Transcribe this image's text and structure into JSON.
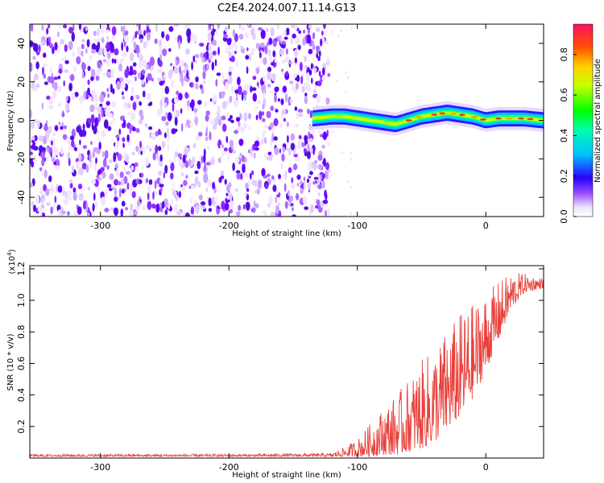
{
  "title": "C2E4.2024.007.11.14.G13",
  "colors": {
    "snr_line": "#e8403a",
    "spectrogram_noise": "#7f00ff",
    "axis": "#000000"
  },
  "chart_data": [
    {
      "type": "heatmap",
      "name": "spectrogram",
      "xlabel": "Height of straight line (km)",
      "ylabel": "Frequency (Hz)",
      "xlim": [
        -355,
        45
      ],
      "ylim": [
        -50,
        50
      ],
      "x_ticks": [
        -300,
        -200,
        -100,
        0
      ],
      "x_tick_labels": [
        "-300",
        "-200",
        "-100",
        "0"
      ],
      "y_ticks": [
        -40,
        -20,
        0,
        20,
        40
      ],
      "y_tick_labels": [
        "-40",
        "-20",
        "0",
        "20",
        "40"
      ],
      "noise_region_end_km": -122,
      "signal_ridge": {
        "x": [
          -135,
          -120,
          -110,
          -100,
          -90,
          -80,
          -70,
          -60,
          -50,
          -40,
          -30,
          -20,
          -10,
          0,
          10,
          20,
          30,
          45
        ],
        "freq": [
          1,
          2,
          2,
          1,
          0,
          -1,
          -2,
          0,
          2,
          3,
          4,
          3,
          2,
          0,
          1,
          1,
          1,
          0
        ]
      },
      "colorbar": {
        "label": "Normalized spectral amplitude",
        "range": [
          0.0,
          0.95
        ],
        "ticks": [
          0.0,
          0.2,
          0.4,
          0.6,
          0.8
        ],
        "tick_labels": [
          "0.0",
          "0.2",
          "0.4",
          "0.6",
          "0.8"
        ]
      }
    },
    {
      "type": "line",
      "name": "snr",
      "xlabel": "Height of straight line (km)",
      "ylabel": "SNR (10 * v/v)",
      "y_multiplier": "(x10",
      "y_multiplier_exp": "4",
      "xlim": [
        -355,
        45
      ],
      "ylim": [
        0,
        1.22
      ],
      "x_ticks": [
        -300,
        -200,
        -100,
        0
      ],
      "x_tick_labels": [
        "-300",
        "-200",
        "-100",
        "0"
      ],
      "y_ticks": [
        0.2,
        0.4,
        0.6,
        0.8,
        1.0,
        1.2
      ],
      "y_tick_labels": [
        "0.2",
        "0.4",
        "0.6",
        "0.8",
        "1.0",
        "1.2"
      ],
      "envelope": {
        "x": [
          -355,
          -300,
          -200,
          -120,
          -110,
          -100,
          -90,
          -80,
          -70,
          -60,
          -50,
          -40,
          -30,
          -20,
          -10,
          0,
          10,
          20,
          30,
          45
        ],
        "low": [
          0.01,
          0.01,
          0.01,
          0.01,
          0.01,
          0.01,
          0.01,
          0.02,
          0.02,
          0.04,
          0.06,
          0.1,
          0.18,
          0.26,
          0.38,
          0.55,
          0.75,
          0.95,
          1.05,
          1.08
        ],
        "high": [
          0.025,
          0.025,
          0.025,
          0.03,
          0.07,
          0.12,
          0.22,
          0.32,
          0.4,
          0.5,
          0.62,
          0.7,
          0.82,
          0.92,
          0.98,
          1.05,
          1.12,
          1.18,
          1.17,
          1.14
        ]
      }
    }
  ]
}
